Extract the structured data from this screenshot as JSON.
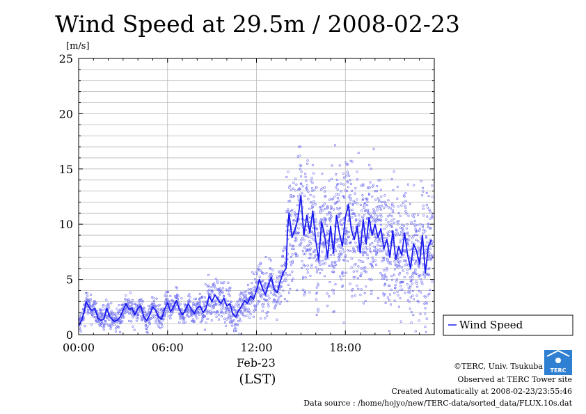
{
  "chart_data": {
    "type": "scatter",
    "title": "Wind Speed at 29.5m / 2008-02-23",
    "ylabel": "[m/s]",
    "xlabel": "(LST)",
    "date_label": "Feb-23",
    "x_range_hours": [
      0,
      24
    ],
    "ylim": [
      0,
      25
    ],
    "yticks": [
      "0",
      "5",
      "10",
      "15",
      "20",
      "25"
    ],
    "xticks": [
      {
        "hour": 0,
        "label": "00:00"
      },
      {
        "hour": 6,
        "label": "06:00"
      },
      {
        "hour": 12,
        "label": "12:00"
      },
      {
        "hour": 18,
        "label": "18:00"
      }
    ],
    "grid": true,
    "legend_position": "right-bottom",
    "series": [
      {
        "name": "Wind Speed",
        "style": "line+scatter",
        "mean_profile": [
          [
            0.0,
            0.8
          ],
          [
            0.2,
            1.3
          ],
          [
            0.4,
            2.2
          ],
          [
            0.5,
            3.0
          ],
          [
            0.7,
            2.5
          ],
          [
            0.9,
            2.2
          ],
          [
            1.1,
            2.4
          ],
          [
            1.3,
            1.5
          ],
          [
            1.5,
            1.3
          ],
          [
            1.7,
            1.4
          ],
          [
            1.9,
            2.4
          ],
          [
            2.1,
            1.6
          ],
          [
            2.4,
            1.2
          ],
          [
            2.6,
            1.3
          ],
          [
            2.8,
            1.6
          ],
          [
            3.0,
            2.2
          ],
          [
            3.2,
            2.8
          ],
          [
            3.4,
            2.3
          ],
          [
            3.6,
            2.4
          ],
          [
            3.8,
            1.8
          ],
          [
            4.0,
            2.4
          ],
          [
            4.2,
            2.6
          ],
          [
            4.4,
            1.6
          ],
          [
            4.6,
            1.3
          ],
          [
            4.8,
            1.8
          ],
          [
            5.0,
            2.5
          ],
          [
            5.2,
            2.2
          ],
          [
            5.4,
            1.6
          ],
          [
            5.6,
            1.4
          ],
          [
            5.8,
            2.3
          ],
          [
            6.0,
            2.9
          ],
          [
            6.2,
            2.1
          ],
          [
            6.4,
            2.5
          ],
          [
            6.6,
            3.1
          ],
          [
            6.8,
            2.3
          ],
          [
            7.0,
            1.8
          ],
          [
            7.2,
            2.2
          ],
          [
            7.4,
            2.8
          ],
          [
            7.6,
            2.3
          ],
          [
            7.8,
            1.9
          ],
          [
            8.0,
            2.4
          ],
          [
            8.2,
            2.6
          ],
          [
            8.4,
            2.0
          ],
          [
            8.6,
            2.4
          ],
          [
            8.8,
            3.5
          ],
          [
            9.0,
            3.0
          ],
          [
            9.2,
            3.6
          ],
          [
            9.4,
            3.2
          ],
          [
            9.6,
            2.8
          ],
          [
            9.8,
            3.3
          ],
          [
            10.0,
            2.6
          ],
          [
            10.2,
            2.8
          ],
          [
            10.4,
            1.9
          ],
          [
            10.6,
            1.6
          ],
          [
            10.8,
            2.2
          ],
          [
            11.0,
            2.6
          ],
          [
            11.2,
            3.1
          ],
          [
            11.4,
            2.8
          ],
          [
            11.6,
            3.5
          ],
          [
            11.8,
            3.2
          ],
          [
            12.0,
            4.0
          ],
          [
            12.2,
            5.0
          ],
          [
            12.4,
            4.2
          ],
          [
            12.6,
            3.6
          ],
          [
            12.8,
            4.5
          ],
          [
            13.0,
            5.2
          ],
          [
            13.2,
            4.1
          ],
          [
            13.4,
            3.8
          ],
          [
            13.6,
            4.8
          ],
          [
            13.8,
            5.6
          ],
          [
            14.0,
            6.0
          ],
          [
            14.1,
            9.5
          ],
          [
            14.2,
            11.0
          ],
          [
            14.4,
            8.8
          ],
          [
            14.6,
            9.5
          ],
          [
            14.8,
            10.5
          ],
          [
            15.0,
            12.6
          ],
          [
            15.2,
            9.0
          ],
          [
            15.4,
            10.8
          ],
          [
            15.6,
            9.2
          ],
          [
            15.8,
            11.2
          ],
          [
            16.0,
            8.5
          ],
          [
            16.2,
            6.8
          ],
          [
            16.4,
            10.2
          ],
          [
            16.6,
            9.0
          ],
          [
            16.8,
            7.0
          ],
          [
            17.0,
            9.8
          ],
          [
            17.2,
            7.4
          ],
          [
            17.4,
            10.8
          ],
          [
            17.6,
            9.2
          ],
          [
            17.8,
            8.0
          ],
          [
            18.0,
            10.6
          ],
          [
            18.2,
            11.8
          ],
          [
            18.4,
            9.5
          ],
          [
            18.6,
            8.6
          ],
          [
            18.8,
            9.8
          ],
          [
            19.0,
            7.4
          ],
          [
            19.2,
            10.4
          ],
          [
            19.4,
            8.2
          ],
          [
            19.6,
            10.6
          ],
          [
            19.8,
            9.0
          ],
          [
            20.0,
            10.0
          ],
          [
            20.2,
            8.8
          ],
          [
            20.4,
            9.6
          ],
          [
            20.6,
            7.8
          ],
          [
            20.8,
            8.6
          ],
          [
            21.0,
            7.0
          ],
          [
            21.2,
            9.4
          ],
          [
            21.4,
            6.8
          ],
          [
            21.6,
            8.0
          ],
          [
            21.8,
            7.2
          ],
          [
            22.0,
            9.2
          ],
          [
            22.2,
            7.2
          ],
          [
            22.4,
            6.0
          ],
          [
            22.6,
            8.2
          ],
          [
            22.8,
            7.6
          ],
          [
            23.0,
            6.4
          ],
          [
            23.2,
            9.0
          ],
          [
            23.4,
            5.6
          ],
          [
            23.6,
            8.0
          ],
          [
            23.8,
            8.6
          ]
        ]
      }
    ]
  },
  "colors": {
    "line": "#1a1aee",
    "point": "#6f6ff0",
    "grid": "#b8b8b8",
    "axis": "#000000"
  },
  "credits": {
    "copyright": "©TERC, Univ. Tsukuba",
    "observed": "Observed at TERC Tower site",
    "created": "Created Automatically at 2008-02-23/23:55:46",
    "source": "Data source : /home/hojyo/new/TERC-data/sorted_data/FLUX.10s.dat",
    "logo_text": "TERC"
  }
}
